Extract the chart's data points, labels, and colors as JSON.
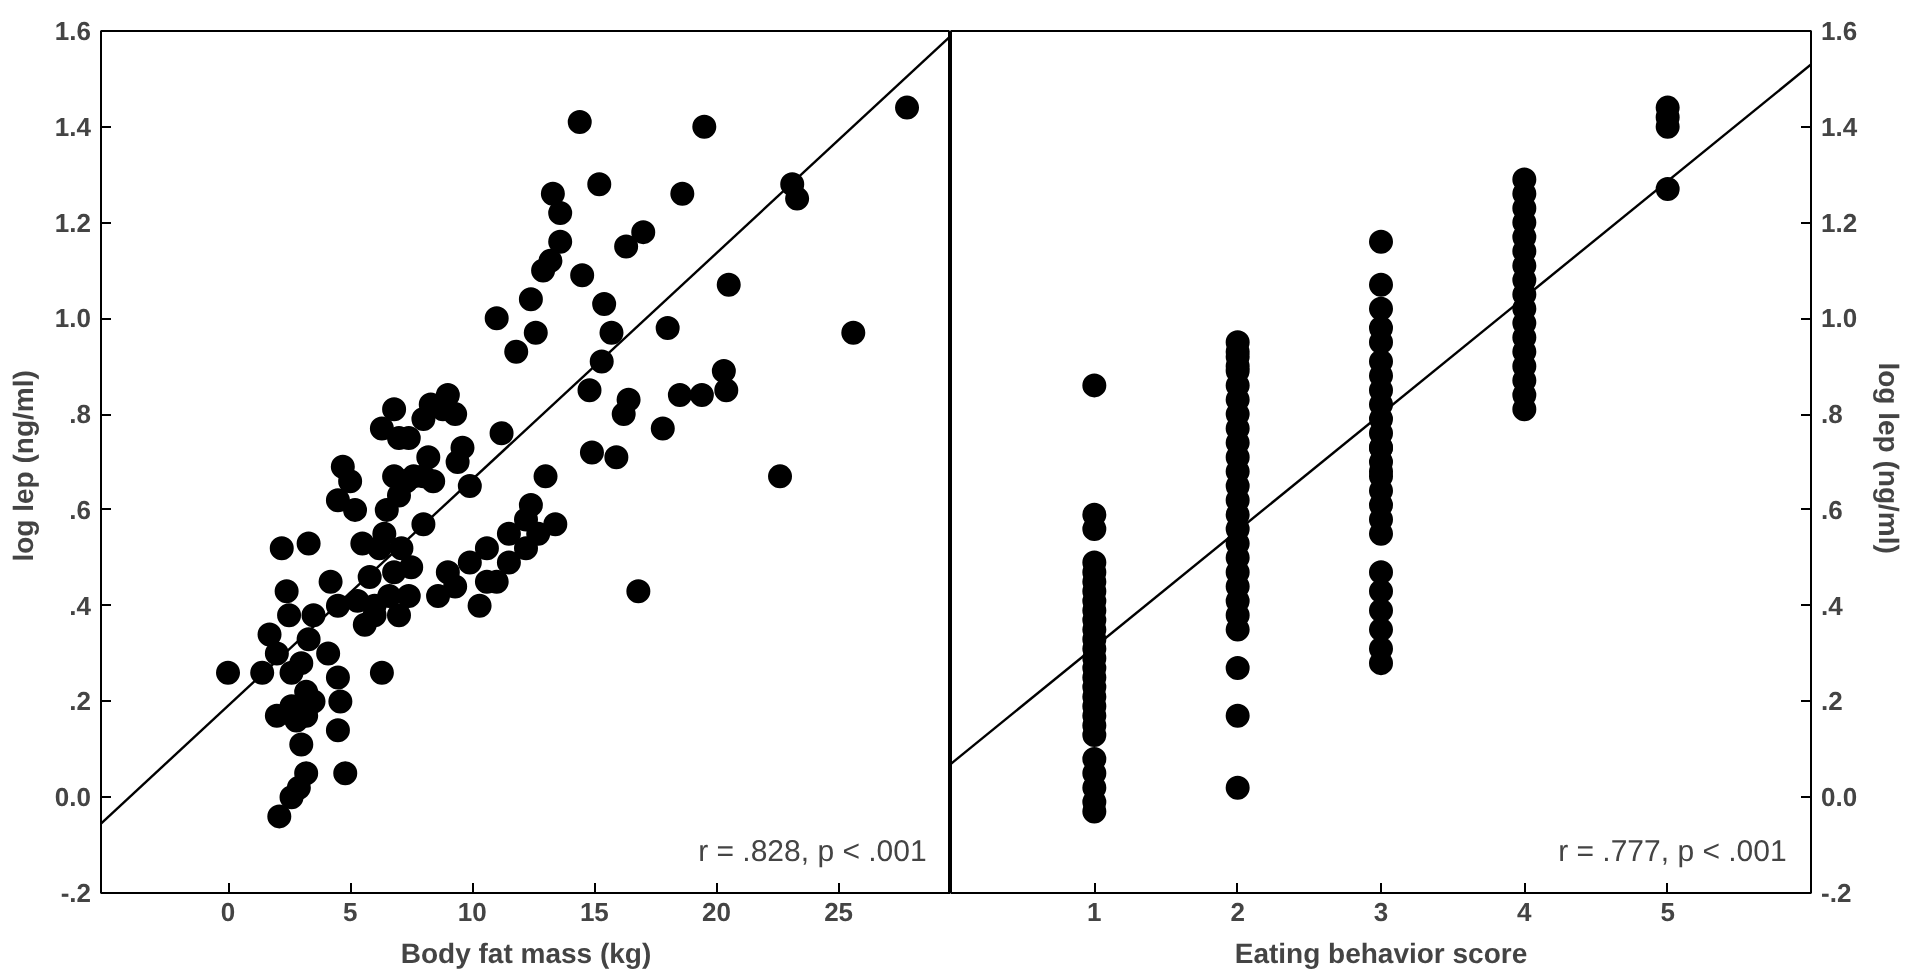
{
  "chart_data": [
    {
      "type": "scatter",
      "xlabel": "Body fat mass (kg)",
      "ylabel": "log  lep (ng/ml)",
      "xlim": [
        -5.2,
        29.6
      ],
      "ylim": [
        -0.2,
        1.6
      ],
      "xticks": [
        0,
        5,
        10,
        15,
        20,
        25
      ],
      "yticks": [
        {
          "value": -0.2,
          "label": "-.2"
        },
        {
          "value": 0,
          "label": "0.0"
        },
        {
          "value": 0.2,
          "label": ".2"
        },
        {
          "value": 0.4,
          "label": ".4"
        },
        {
          "value": 0.6,
          "label": ".6"
        },
        {
          "value": 0.8,
          "label": ".8"
        },
        {
          "value": 1.0,
          "label": "1.0"
        },
        {
          "value": 1.2,
          "label": "1.2"
        },
        {
          "value": 1.4,
          "label": "1.4"
        },
        {
          "value": 1.6,
          "label": "1.6"
        }
      ],
      "grid": false,
      "annotations": [
        "r = .828,  p < .001"
      ],
      "series": [
        {
          "marker": "circle",
          "color": "#000000",
          "x": [
            0.0,
            1.4,
            1.7,
            2.0,
            2.2,
            2.0,
            2.1,
            2.6,
            2.9,
            3.2,
            3.0,
            2.8,
            2.6,
            2.5,
            2.4,
            3.3,
            3.5,
            3.3,
            3.0,
            3.2,
            3.5,
            3.2,
            2.6,
            4.1,
            4.5,
            4.6,
            4.5,
            4.8,
            4.2,
            4.5,
            4.5,
            4.7,
            5.0,
            5.2,
            5.5,
            5.3,
            5.8,
            6.0,
            5.6,
            6.3,
            6.0,
            6.2,
            6.4,
            6.5,
            6.8,
            6.3,
            6.8,
            7.0,
            7.4,
            7.0,
            7.3,
            7.6,
            6.8,
            7.4,
            7.5,
            7.0,
            6.6,
            7.1,
            8.0,
            8.0,
            8.2,
            8.4,
            8.0,
            8.3,
            9.0,
            8.8,
            9.3,
            9.4,
            9.6,
            9.9,
            9.0,
            8.6,
            9.3,
            9.9,
            10.6,
            10.3,
            10.6,
            11.0,
            11.5,
            11.5,
            12.2,
            12.4,
            12.7,
            12.2,
            13.4,
            13.0,
            11.2,
            11.8,
            11.0,
            12.4,
            12.6,
            12.9,
            13.2,
            13.6,
            13.3,
            13.6,
            14.4,
            14.5,
            15.4,
            15.7,
            15.3,
            14.8,
            14.9,
            15.9,
            16.2,
            16.4,
            16.8,
            17.8,
            18.5,
            19.4,
            20.3,
            20.4,
            18.0,
            18.6,
            19.5,
            20.5,
            17.0,
            16.3,
            15.2,
            22.6,
            23.1,
            23.3,
            25.6,
            27.8
          ],
          "values": [
            0.26,
            0.26,
            0.34,
            0.3,
            0.52,
            0.17,
            -0.04,
            0.0,
            0.02,
            0.05,
            0.11,
            0.16,
            0.26,
            0.38,
            0.43,
            0.53,
            0.38,
            0.33,
            0.28,
            0.22,
            0.2,
            0.17,
            0.19,
            0.3,
            0.25,
            0.2,
            0.14,
            0.05,
            0.45,
            0.4,
            0.62,
            0.69,
            0.66,
            0.6,
            0.53,
            0.41,
            0.46,
            0.38,
            0.36,
            0.26,
            0.4,
            0.52,
            0.55,
            0.6,
            0.67,
            0.77,
            0.81,
            0.75,
            0.75,
            0.63,
            0.66,
            0.67,
            0.47,
            0.42,
            0.48,
            0.38,
            0.42,
            0.52,
            0.57,
            0.67,
            0.71,
            0.66,
            0.79,
            0.82,
            0.84,
            0.81,
            0.8,
            0.7,
            0.73,
            0.65,
            0.47,
            0.42,
            0.44,
            0.49,
            0.45,
            0.4,
            0.52,
            0.45,
            0.55,
            0.49,
            0.58,
            0.61,
            0.55,
            0.52,
            0.57,
            0.67,
            0.76,
            0.93,
            1.0,
            1.04,
            0.97,
            1.1,
            1.12,
            1.16,
            1.26,
            1.22,
            1.41,
            1.09,
            1.03,
            0.97,
            0.91,
            0.85,
            0.72,
            0.71,
            0.8,
            0.83,
            0.43,
            0.77,
            0.84,
            0.84,
            0.89,
            0.85,
            0.98,
            1.26,
            1.4,
            1.07,
            1.18,
            1.15,
            1.28,
            0.67,
            1.28,
            1.25,
            0.97,
            1.44
          ]
        },
        {
          "type": "line",
          "marker": "none",
          "color": "#000000",
          "x": [
            -5.2,
            29.6
          ],
          "values": [
            -0.055,
            1.59
          ]
        }
      ]
    },
    {
      "type": "scatter",
      "xlabel": "Eating behavior score",
      "ylabel": "log  lep (ng/ml)",
      "xlim": [
        0,
        6
      ],
      "ylim": [
        -0.2,
        1.6
      ],
      "xticks": [
        1,
        2,
        3,
        4,
        5
      ],
      "yticks": [
        {
          "value": -0.2,
          "label": "-.2"
        },
        {
          "value": 0,
          "label": "0.0"
        },
        {
          "value": 0.2,
          "label": ".2"
        },
        {
          "value": 0.4,
          "label": ".4"
        },
        {
          "value": 0.6,
          "label": ".6"
        },
        {
          "value": 0.8,
          "label": ".8"
        },
        {
          "value": 1.0,
          "label": "1.0"
        },
        {
          "value": 1.2,
          "label": "1.2"
        },
        {
          "value": 1.4,
          "label": "1.4"
        },
        {
          "value": 1.6,
          "label": "1.6"
        }
      ],
      "grid": false,
      "annotations": [
        "r = .777,  p < .001"
      ],
      "series": [
        {
          "marker": "circle",
          "color": "#000000",
          "x": [
            1,
            1,
            1,
            1,
            1,
            1,
            1,
            1,
            1,
            1,
            1,
            1,
            1,
            1,
            1,
            1,
            1,
            1,
            1,
            1,
            1,
            1,
            1,
            1,
            1,
            1,
            1,
            2,
            2,
            2,
            2,
            2,
            2,
            2,
            2,
            2,
            2,
            2,
            2,
            2,
            2,
            2,
            2,
            2,
            2,
            2,
            2,
            2,
            2,
            2,
            2,
            2,
            2,
            3,
            3,
            3,
            3,
            3,
            3,
            3,
            3,
            3,
            3,
            3,
            3,
            3,
            3,
            3,
            3,
            3,
            3,
            3,
            3,
            3,
            3,
            3,
            3,
            3,
            3,
            4,
            4,
            4,
            4,
            4,
            4,
            4,
            4,
            4,
            4,
            4,
            4,
            4,
            4,
            4,
            4,
            4,
            5,
            5,
            5,
            5
          ],
          "values": [
            0.86,
            0.59,
            0.56,
            0.49,
            0.47,
            0.45,
            0.43,
            0.41,
            0.39,
            0.37,
            0.35,
            0.33,
            0.31,
            0.29,
            0.27,
            0.25,
            0.23,
            0.21,
            0.19,
            0.17,
            0.15,
            0.13,
            0.08,
            0.05,
            0.02,
            -0.01,
            -0.03,
            0.95,
            0.92,
            0.89,
            0.86,
            0.83,
            0.8,
            0.77,
            0.74,
            0.71,
            0.68,
            0.65,
            0.62,
            0.59,
            0.56,
            0.53,
            0.5,
            0.47,
            0.44,
            0.41,
            0.38,
            0.35,
            0.27,
            0.17,
            0.02,
            0.93,
            0.9,
            1.16,
            1.07,
            1.02,
            0.98,
            0.95,
            0.91,
            0.88,
            0.85,
            0.82,
            0.79,
            0.76,
            0.73,
            0.7,
            0.67,
            0.64,
            0.61,
            0.58,
            0.55,
            0.47,
            0.43,
            0.39,
            0.35,
            0.31,
            0.28,
            0.73,
            0.68,
            1.29,
            1.26,
            1.23,
            1.2,
            1.17,
            1.14,
            1.11,
            1.08,
            1.05,
            1.02,
            0.99,
            0.96,
            0.93,
            0.9,
            0.87,
            0.84,
            0.81,
            1.44,
            1.42,
            1.4,
            1.27
          ]
        },
        {
          "type": "line",
          "marker": "none",
          "color": "#000000",
          "x": [
            0,
            6
          ],
          "values": [
            0.07,
            1.53
          ]
        }
      ]
    }
  ]
}
